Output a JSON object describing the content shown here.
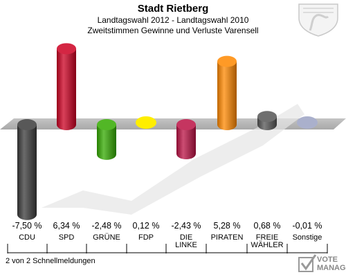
{
  "header": {
    "title": "Stadt Rietberg",
    "subtitle1": "Landtagswahl 2012 - Landtagswahl 2010",
    "subtitle2": "Zweitstimmen Gewinne und Verluste Varensell"
  },
  "footer": {
    "text": "2 von 2 Schnellmeldungen"
  },
  "brand": {
    "line1": "VOTE",
    "line2": "MANAGER"
  },
  "chart_data": {
    "type": "bar",
    "title": "Stadt Rietberg",
    "subtitle": "Landtagswahl 2012 - Landtagswahl 2010 / Zweitstimmen Gewinne und Verluste Varensell",
    "unit": "%",
    "categories": [
      "CDU",
      "SPD",
      "GRÜNE",
      "FDP",
      "DIE LINKE",
      "PIRATEN",
      "FREIE WÄHLER",
      "Sonstige"
    ],
    "values": [
      -7.5,
      6.34,
      -2.48,
      0.12,
      -2.43,
      5.28,
      0.68,
      -0.01
    ],
    "labels": [
      "-7,50 %",
      "6,34 %",
      "-2,48 %",
      "0,12 %",
      "-2,43 %",
      "5,28 %",
      "0,68 %",
      "-0,01 %"
    ],
    "colors": [
      "#3a3a3a",
      "#cc0022",
      "#33aa00",
      "#ffee00",
      "#bb1144",
      "#ff8800",
      "#555555",
      "#aab0cc"
    ],
    "ylim": [
      -7.5,
      6.34
    ]
  }
}
